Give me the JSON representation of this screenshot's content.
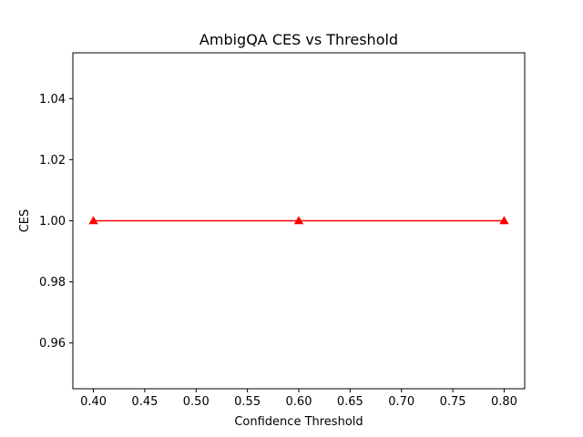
{
  "chart_data": {
    "type": "line",
    "title": "AmbigQA CES vs Threshold",
    "xlabel": "Confidence Threshold",
    "ylabel": "CES",
    "xlim": [
      0.38,
      0.82
    ],
    "ylim": [
      0.945,
      1.055
    ],
    "x_ticks": [
      0.4,
      0.45,
      0.5,
      0.55,
      0.6,
      0.65,
      0.7,
      0.75,
      0.8
    ],
    "x_tick_labels": [
      "0.40",
      "0.45",
      "0.50",
      "0.55",
      "0.60",
      "0.65",
      "0.70",
      "0.75",
      "0.80"
    ],
    "y_ticks": [
      0.96,
      0.98,
      1.0,
      1.02,
      1.04
    ],
    "y_tick_labels": [
      "0.96",
      "0.98",
      "1.00",
      "1.02",
      "1.04"
    ],
    "grid": false,
    "series": [
      {
        "color": "#ff0000",
        "marker": "triangle-up",
        "x": [
          0.4,
          0.6,
          0.8
        ],
        "y": [
          1.0,
          1.0,
          1.0
        ]
      }
    ]
  }
}
